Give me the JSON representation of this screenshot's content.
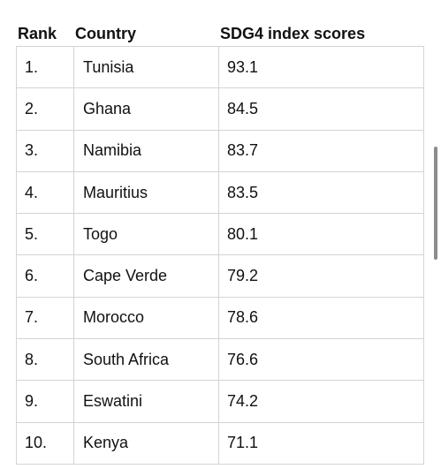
{
  "table": {
    "headers": {
      "rank": "Rank",
      "country": "Country",
      "score": "SDG4 index scores"
    },
    "rows": [
      {
        "rank": "1.",
        "country": "Tunisia",
        "score": "93.1"
      },
      {
        "rank": "2.",
        "country": "Ghana",
        "score": "84.5"
      },
      {
        "rank": "3.",
        "country": "Namibia",
        "score": "83.7"
      },
      {
        "rank": "4.",
        "country": "Mauritius",
        "score": "83.5"
      },
      {
        "rank": "5.",
        "country": "Togo",
        "score": "80.1"
      },
      {
        "rank": "6.",
        "country": "Cape Verde",
        "score": "79.2"
      },
      {
        "rank": "7.",
        "country": "Morocco",
        "score": "78.6"
      },
      {
        "rank": "8.",
        "country": "South Africa",
        "score": "76.6"
      },
      {
        "rank": "9.",
        "country": "Eswatini",
        "score": "74.2"
      },
      {
        "rank": "10.",
        "country": "Kenya",
        "score": "71.1"
      }
    ]
  }
}
